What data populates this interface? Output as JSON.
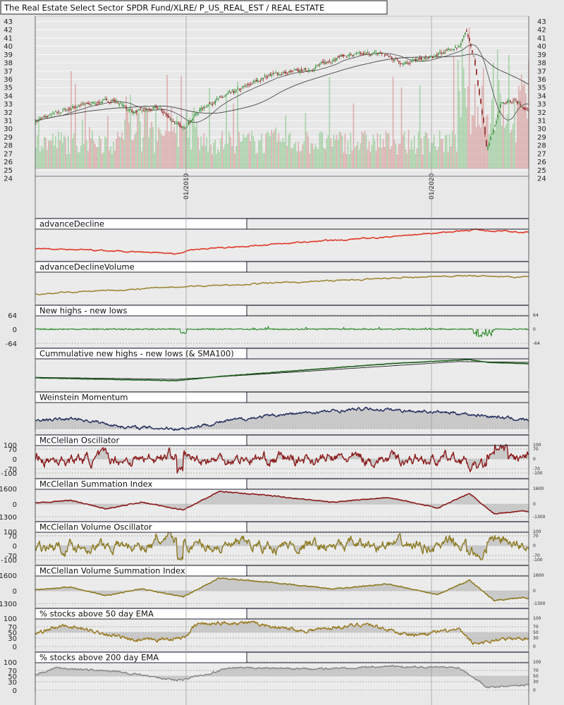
{
  "main_title": "The Real Estate Select Sector SPDR Fund/XLRE/ P_US_REAL_EST / REAL ESTATE",
  "colors": {
    "background": "#e8e8e8",
    "up_candle": "#2e8b2e",
    "down_candle": "#8b1a1a",
    "volume_up": "#9ccc9c",
    "volume_down": "#d9a3a3",
    "advance_decline": "#e03a2a",
    "adv_decl_volume": "#9a8430",
    "new_highs_lows": "#2a8a2a",
    "cumulative": "#1a5e1a",
    "weinstein": "#23305e",
    "mcclellan": "#8b1a1a",
    "mcclellan_volume": "#8b7a20",
    "pct50": "#9a7a20",
    "pct200": "#888888"
  },
  "chart_data": [
    {
      "type": "candlestick",
      "title": "The Real Estate Select Sector SPDR Fund/XLRE/ P_US_REAL_EST / REAL ESTATE",
      "y_tick_labels": [
        "43",
        "42",
        "41",
        "40",
        "39",
        "38",
        "37",
        "36",
        "35",
        "34",
        "33",
        "32",
        "31",
        "30",
        "29",
        "28",
        "27",
        "26",
        "25",
        "24"
      ],
      "ylim": [
        24,
        43.5
      ],
      "x_tick_labels": [
        "01/2019",
        "01/2020"
      ],
      "overlays": [
        "SMA50",
        "SMA200"
      ],
      "volume_bars": true,
      "series": [
        {
          "name": "close",
          "x": [
            "2018-04",
            "2018-06",
            "2018-08",
            "2018-10",
            "2018-12",
            "2019-01",
            "2019-03",
            "2019-05",
            "2019-07",
            "2019-09",
            "2019-10",
            "2019-12",
            "2020-01",
            "2020-02",
            "2020-03-05",
            "2020-03-20",
            "2020-04"
          ],
          "values": [
            31.0,
            32.8,
            33.5,
            32.0,
            30.0,
            32.5,
            34.5,
            36.5,
            37.0,
            39.2,
            38.6,
            38.6,
            39.8,
            41.8,
            38.5,
            27.5,
            32.0
          ]
        }
      ]
    },
    {
      "type": "line",
      "title": "advanceDecline"
    },
    {
      "type": "line",
      "title": "advanceDeclineVolume"
    },
    {
      "type": "line",
      "title": "New highs - new lows",
      "y_tick_labels": [
        "64",
        "0",
        "-64"
      ],
      "ylim": [
        -64,
        64
      ]
    },
    {
      "type": "line",
      "title": "Cummulative new highs - new lows (& SMA100)"
    },
    {
      "type": "area",
      "title": "Weinstein Momentum"
    },
    {
      "type": "area",
      "title": "McClellan Oscillator",
      "y_tick_labels": [
        "100",
        "70",
        "0",
        "-70",
        "-100"
      ],
      "ylim": [
        -100,
        100
      ]
    },
    {
      "type": "area",
      "title": "McClellan Summation Index",
      "y_tick_labels": [
        "1600",
        "0",
        "-1300"
      ],
      "ylim": [
        -1300,
        1600
      ]
    },
    {
      "type": "area",
      "title": "McClellan Volume Oscillator",
      "y_tick_labels": [
        "100",
        "70",
        "0",
        "-70",
        "-100"
      ],
      "ylim": [
        -100,
        100
      ]
    },
    {
      "type": "area",
      "title": "McClellan Volume Summation Index",
      "y_tick_labels": [
        "1600",
        "0",
        "-1300"
      ],
      "ylim": [
        -1300,
        1600
      ]
    },
    {
      "type": "line",
      "title": "% stocks above 50 day EMA",
      "y_tick_labels": [
        "100",
        "70",
        "50",
        "30",
        "0"
      ],
      "ylim": [
        0,
        100
      ]
    },
    {
      "type": "line",
      "title": "% stocks above 200 day EMA",
      "y_tick_labels": [
        "100",
        "70",
        "50",
        "30",
        "0"
      ],
      "ylim": [
        0,
        100
      ]
    }
  ]
}
